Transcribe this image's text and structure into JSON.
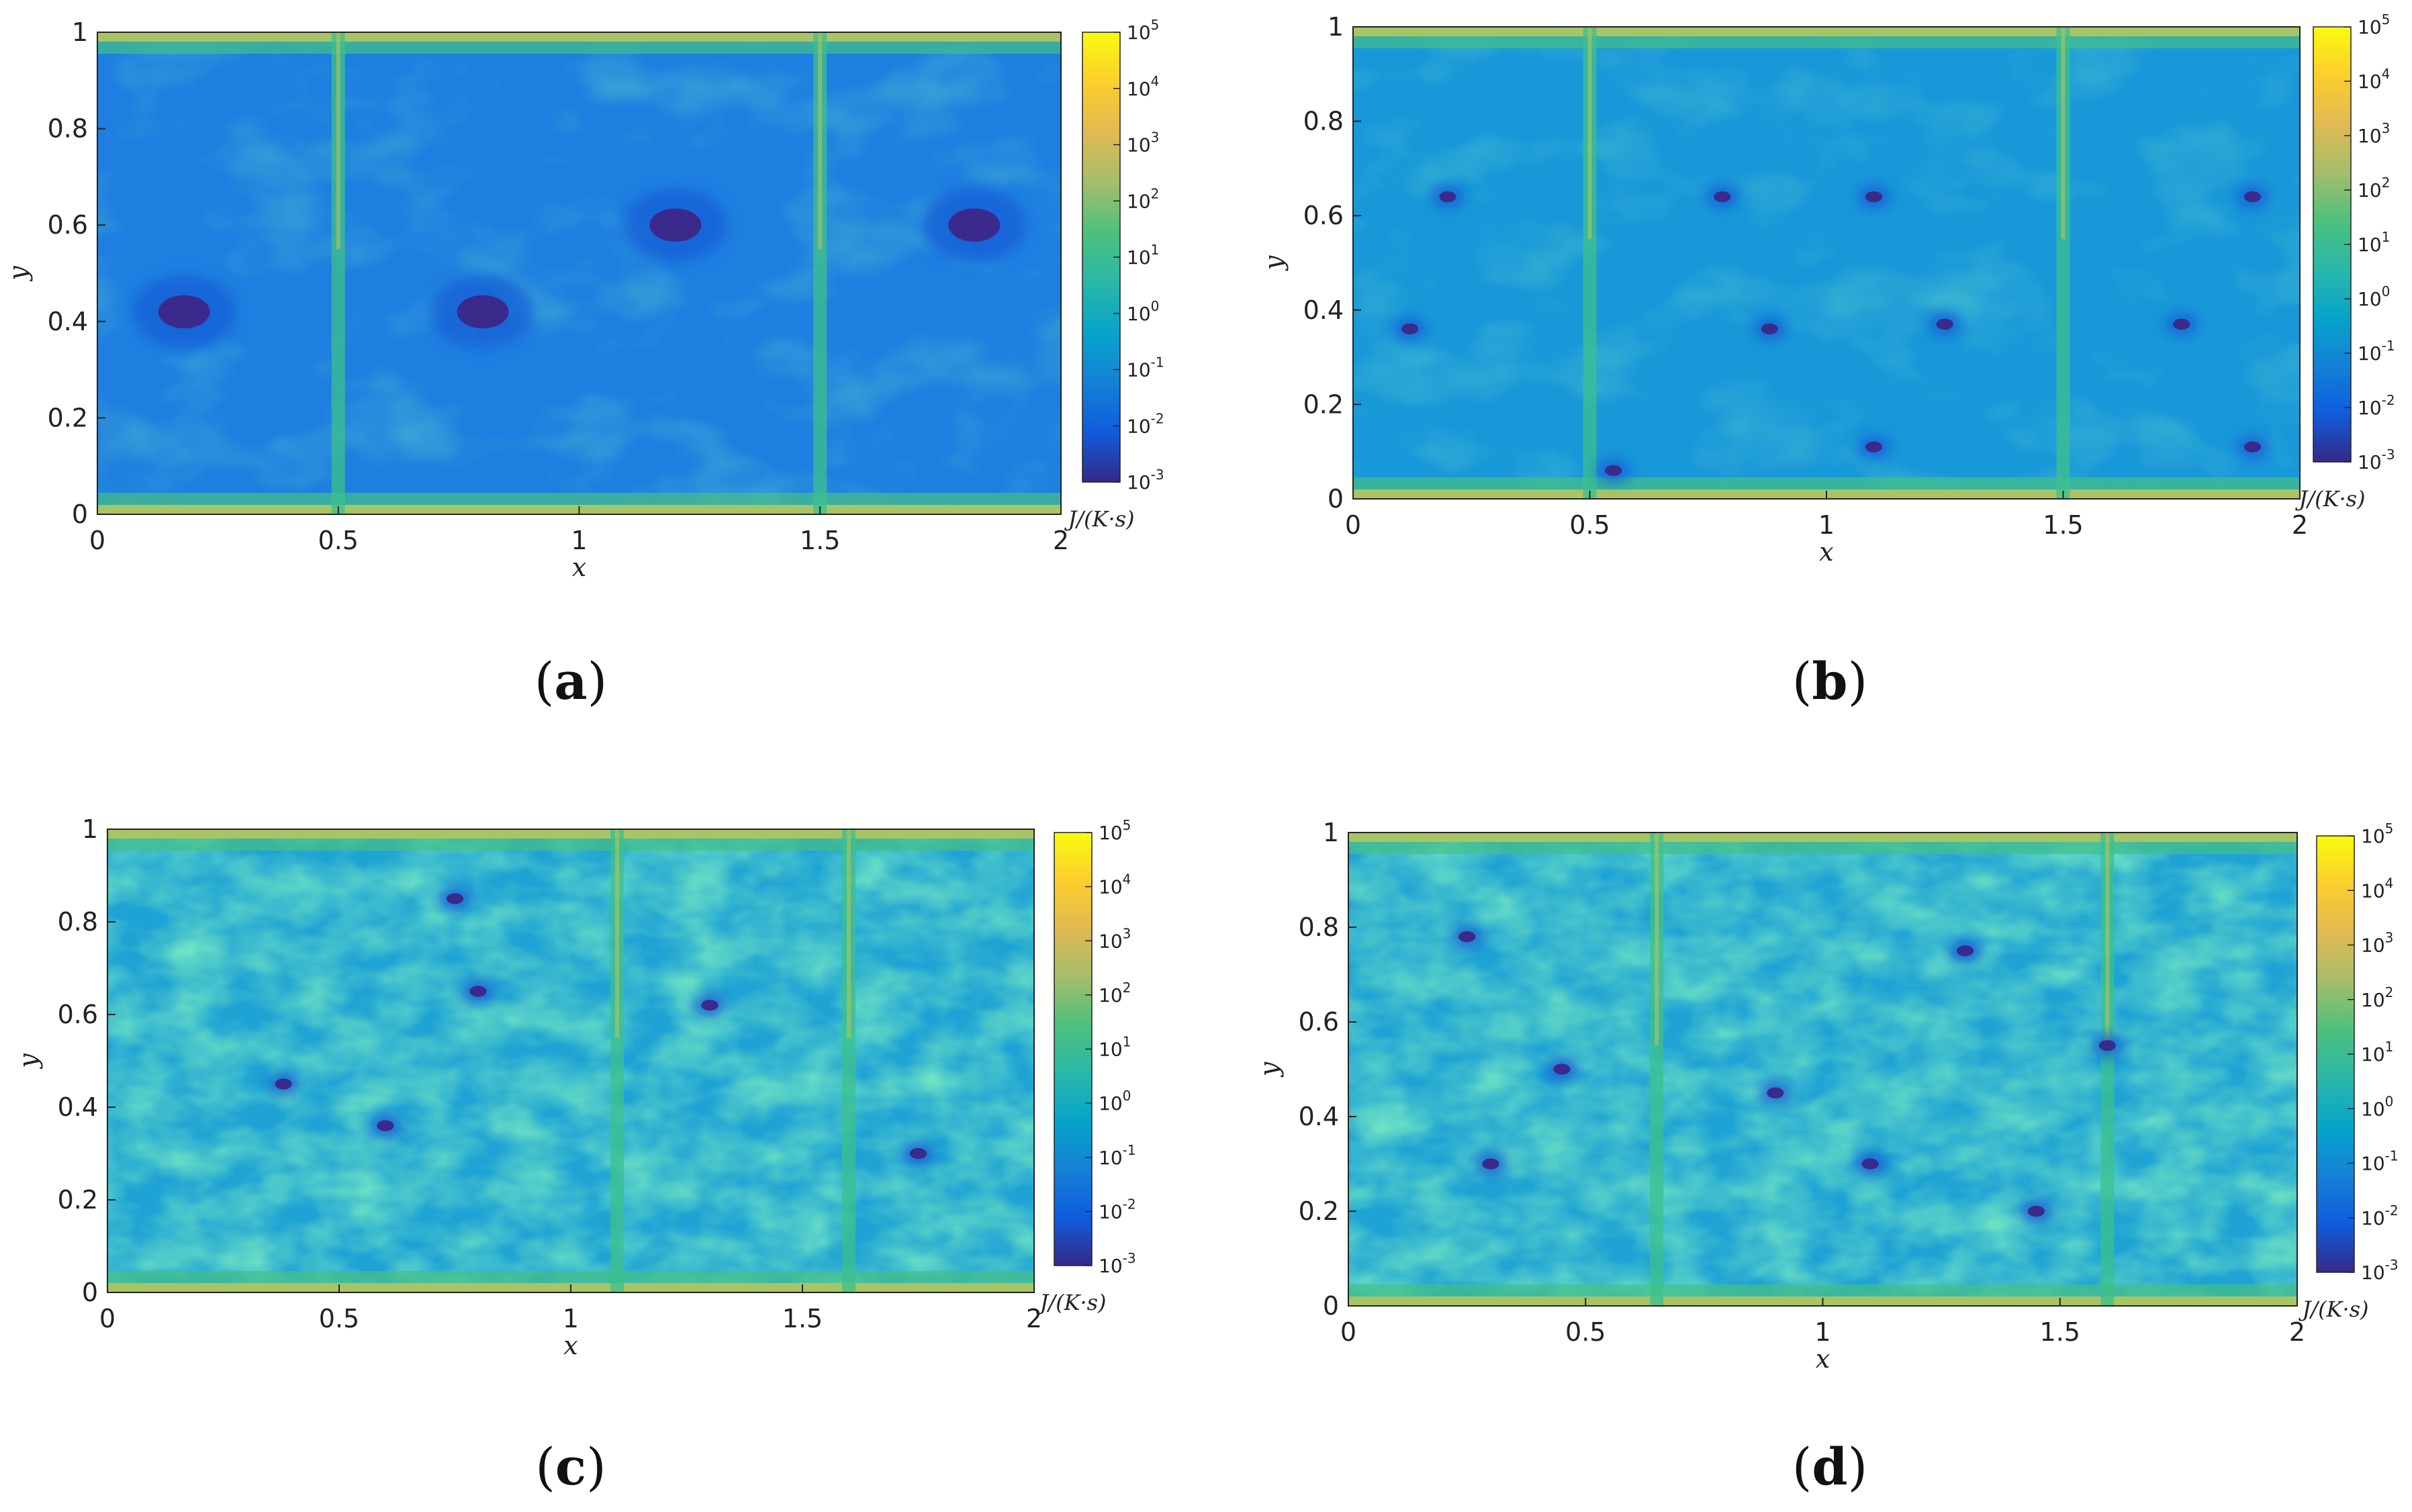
{
  "chart_data": [
    {
      "type": "heatmap",
      "panel": "a",
      "caption_letter": "a",
      "xlabel": "x",
      "ylabel": "y",
      "xlim": [
        0,
        2
      ],
      "ylim": [
        0,
        1
      ],
      "xticks": [
        "0",
        "0.5",
        "1",
        "1.5",
        "2"
      ],
      "yticks": [
        "0",
        "0.2",
        "0.4",
        "0.6",
        "0.8",
        "1"
      ],
      "colorbar": {
        "scale": "log",
        "range": [
          0.001,
          100000
        ],
        "tick_bases": [
          "10",
          "10",
          "10",
          "10",
          "10",
          "10",
          "10",
          "10",
          "10"
        ],
        "tick_exponents": [
          "-3",
          "-2",
          "-1",
          "0",
          "1",
          "2",
          "3",
          "4",
          "5"
        ],
        "unit_label": "J/(K·s)"
      },
      "features": {
        "vortex_minima": [
          [
            0.18,
            0.42
          ],
          [
            0.8,
            0.42
          ],
          [
            1.2,
            0.6
          ],
          [
            1.82,
            0.6
          ]
        ],
        "vertical_plumes_x": [
          0.5,
          1.5
        ]
      }
    },
    {
      "type": "heatmap",
      "panel": "b",
      "caption_letter": "b",
      "xlabel": "x",
      "ylabel": "y",
      "xlim": [
        0,
        2
      ],
      "ylim": [
        0,
        1
      ],
      "xticks": [
        "0",
        "0.5",
        "1",
        "1.5",
        "2"
      ],
      "yticks": [
        "0",
        "0.2",
        "0.4",
        "0.6",
        "0.8",
        "1"
      ],
      "colorbar": {
        "scale": "log",
        "range": [
          0.001,
          100000
        ],
        "tick_bases": [
          "10",
          "10",
          "10",
          "10",
          "10",
          "10",
          "10",
          "10",
          "10"
        ],
        "tick_exponents": [
          "-3",
          "-2",
          "-1",
          "0",
          "1",
          "2",
          "3",
          "4",
          "5"
        ],
        "unit_label": "J/(K·s)"
      },
      "features": {
        "vortex_minima": [
          [
            0.2,
            0.64
          ],
          [
            0.12,
            0.36
          ],
          [
            0.78,
            0.64
          ],
          [
            0.88,
            0.36
          ],
          [
            1.1,
            0.64
          ],
          [
            1.1,
            0.11
          ],
          [
            1.25,
            0.37
          ],
          [
            1.75,
            0.37
          ],
          [
            1.9,
            0.64
          ],
          [
            1.9,
            0.11
          ],
          [
            0.55,
            0.06
          ]
        ],
        "vertical_plumes_x": [
          0.5,
          1.5
        ]
      }
    },
    {
      "type": "heatmap",
      "panel": "c",
      "caption_letter": "c",
      "xlabel": "x",
      "ylabel": "y",
      "xlim": [
        0,
        2
      ],
      "ylim": [
        0,
        1
      ],
      "xticks": [
        "0",
        "0.5",
        "1",
        "1.5",
        "2"
      ],
      "yticks": [
        "0",
        "0.2",
        "0.4",
        "0.6",
        "0.8",
        "1"
      ],
      "colorbar": {
        "scale": "log",
        "range": [
          0.001,
          100000
        ],
        "tick_bases": [
          "10",
          "10",
          "10",
          "10",
          "10",
          "10",
          "10",
          "10",
          "10"
        ],
        "tick_exponents": [
          "-3",
          "-2",
          "-1",
          "0",
          "1",
          "2",
          "3",
          "4",
          "5"
        ],
        "unit_label": "J/(K·s)"
      },
      "features": {
        "vortex_minima": [
          [
            0.38,
            0.45
          ],
          [
            0.6,
            0.36
          ],
          [
            1.75,
            0.3
          ],
          [
            0.8,
            0.65
          ],
          [
            1.3,
            0.62
          ],
          [
            0.75,
            0.85
          ]
        ],
        "vertical_plumes_x": [
          1.1,
          1.6
        ]
      }
    },
    {
      "type": "heatmap",
      "panel": "d",
      "caption_letter": "d",
      "xlabel": "x",
      "ylabel": "y",
      "xlim": [
        0,
        2
      ],
      "ylim": [
        0,
        1
      ],
      "xticks": [
        "0",
        "0.5",
        "1",
        "1.5",
        "2"
      ],
      "yticks": [
        "0",
        "0.2",
        "0.4",
        "0.6",
        "0.8",
        "1"
      ],
      "colorbar": {
        "scale": "log",
        "range": [
          0.001,
          100000
        ],
        "tick_bases": [
          "10",
          "10",
          "10",
          "10",
          "10",
          "10",
          "10",
          "10",
          "10"
        ],
        "tick_exponents": [
          "-3",
          "-2",
          "-1",
          "0",
          "1",
          "2",
          "3",
          "4",
          "5"
        ],
        "unit_label": "J/(K·s)"
      },
      "features": {
        "vortex_minima": [
          [
            0.25,
            0.78
          ],
          [
            0.45,
            0.5
          ],
          [
            1.1,
            0.3
          ],
          [
            1.3,
            0.75
          ],
          [
            1.6,
            0.55
          ],
          [
            0.9,
            0.45
          ],
          [
            1.45,
            0.2
          ],
          [
            0.3,
            0.3
          ]
        ],
        "vertical_plumes_x": [
          0.65,
          1.6
        ]
      }
    }
  ],
  "colormap_stops": [
    "#352a87",
    "#0f5cdd",
    "#1481d6",
    "#06a4ca",
    "#2ab7a9",
    "#4dc07c",
    "#a5be6b",
    "#e1b952",
    "#fcce2e",
    "#f9fb0e"
  ]
}
